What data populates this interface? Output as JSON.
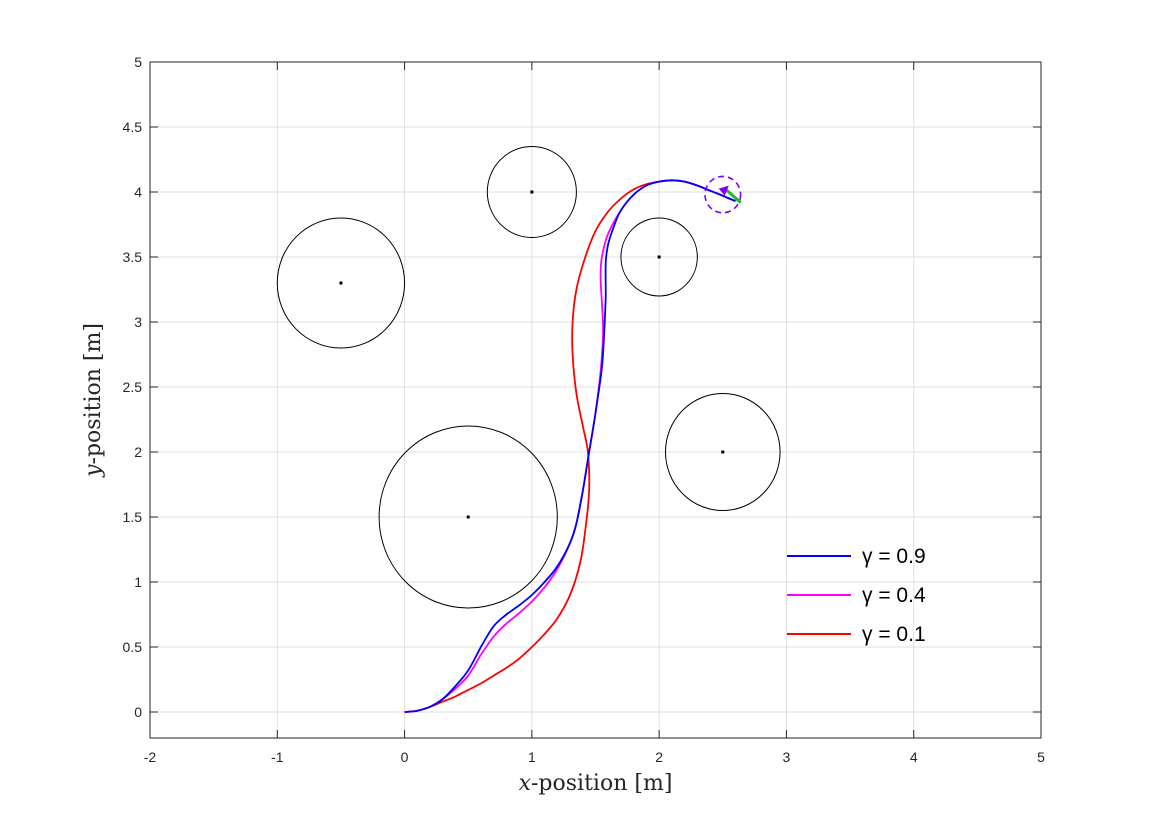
{
  "chart_data": {
    "type": "line",
    "title": "",
    "xlabel": {
      "var": "x",
      "rest": "-position [m]"
    },
    "ylabel": {
      "var": "y",
      "rest": "-position [m]"
    },
    "xlim": [
      -2,
      5
    ],
    "ylim": [
      -0.2,
      5
    ],
    "xticks": [
      -2,
      -1,
      0,
      1,
      2,
      3,
      4,
      5
    ],
    "yticks": [
      0,
      0.5,
      1,
      1.5,
      2,
      2.5,
      3,
      3.5,
      4,
      4.5,
      5
    ],
    "grid": true,
    "legend_position": "lower-right",
    "obstacles": [
      {
        "cx": 1.0,
        "cy": 4.0,
        "r": 0.35
      },
      {
        "cx": -0.5,
        "cy": 3.3,
        "r": 0.5
      },
      {
        "cx": 2.0,
        "cy": 3.5,
        "r": 0.3
      },
      {
        "cx": 0.5,
        "cy": 1.5,
        "r": 0.7
      },
      {
        "cx": 2.5,
        "cy": 2.0,
        "r": 0.45
      }
    ],
    "goal": {
      "cx": 2.5,
      "cy": 3.98,
      "r": 0.14,
      "color": "#7a00ff",
      "arrow_color": "#22bb22"
    },
    "series": [
      {
        "name": "γ = 0.9",
        "color": "#0000ff",
        "x": [
          0,
          0.1,
          0.2,
          0.3,
          0.4,
          0.5,
          0.6,
          0.7,
          0.8,
          0.9,
          1.0,
          1.1,
          1.2,
          1.3,
          1.35,
          1.4,
          1.45,
          1.5,
          1.55,
          1.57,
          1.58,
          1.58,
          1.6,
          1.65,
          1.7,
          1.8,
          1.9,
          2.0,
          2.1,
          2.2,
          2.3,
          2.4,
          2.48,
          2.55,
          2.6
        ],
        "y": [
          0,
          0.01,
          0.04,
          0.1,
          0.2,
          0.32,
          0.5,
          0.66,
          0.75,
          0.82,
          0.9,
          1.0,
          1.12,
          1.3,
          1.45,
          1.7,
          2.0,
          2.3,
          2.65,
          2.95,
          3.2,
          3.45,
          3.6,
          3.75,
          3.86,
          3.98,
          4.05,
          4.08,
          4.09,
          4.08,
          4.05,
          4.01,
          3.98,
          3.95,
          3.93
        ]
      },
      {
        "name": "γ = 0.4",
        "color": "#ff00ff",
        "x": [
          0,
          0.1,
          0.2,
          0.3,
          0.4,
          0.5,
          0.6,
          0.7,
          0.8,
          0.9,
          1.0,
          1.1,
          1.2,
          1.3,
          1.35,
          1.4,
          1.45,
          1.5,
          1.54,
          1.56,
          1.55,
          1.54,
          1.55,
          1.6,
          1.7,
          1.8,
          1.9,
          2.0,
          2.1,
          2.2,
          2.3,
          2.4,
          2.48,
          2.55,
          2.6
        ],
        "y": [
          0,
          0.01,
          0.04,
          0.1,
          0.18,
          0.28,
          0.44,
          0.58,
          0.68,
          0.76,
          0.85,
          0.96,
          1.1,
          1.3,
          1.45,
          1.7,
          2.0,
          2.3,
          2.62,
          2.92,
          3.15,
          3.35,
          3.5,
          3.68,
          3.86,
          3.98,
          4.05,
          4.08,
          4.09,
          4.08,
          4.05,
          4.01,
          3.98,
          3.95,
          3.93
        ]
      },
      {
        "name": "γ = 0.1",
        "color": "#ff0000",
        "x": [
          0,
          0.1,
          0.2,
          0.3,
          0.4,
          0.5,
          0.6,
          0.7,
          0.8,
          0.9,
          1.0,
          1.1,
          1.2,
          1.3,
          1.38,
          1.42,
          1.45,
          1.44,
          1.4,
          1.35,
          1.32,
          1.32,
          1.35,
          1.42,
          1.5,
          1.6,
          1.7,
          1.8,
          1.9,
          2.0,
          2.1,
          2.2,
          2.3,
          2.4,
          2.5,
          2.6
        ],
        "y": [
          0,
          0.01,
          0.04,
          0.08,
          0.12,
          0.17,
          0.22,
          0.28,
          0.34,
          0.41,
          0.5,
          0.6,
          0.72,
          0.9,
          1.15,
          1.4,
          1.7,
          2.0,
          2.2,
          2.45,
          2.75,
          3.0,
          3.25,
          3.5,
          3.7,
          3.85,
          3.95,
          4.02,
          4.06,
          4.08,
          4.09,
          4.08,
          4.05,
          4.01,
          3.97,
          3.93
        ]
      }
    ]
  }
}
